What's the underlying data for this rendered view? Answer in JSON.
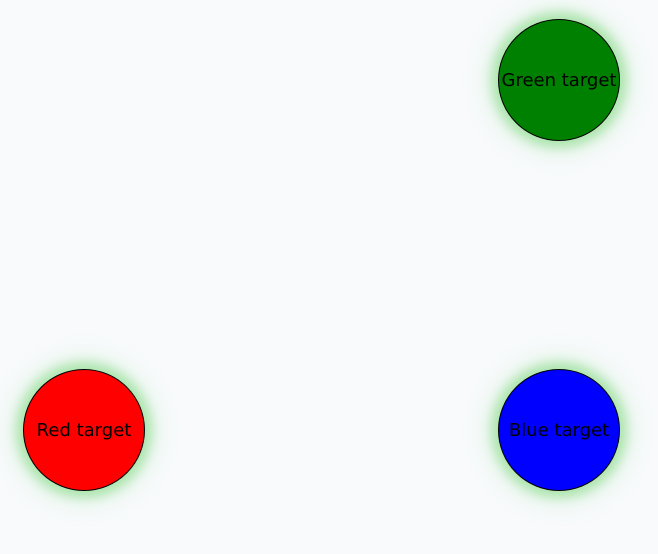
{
  "targets": {
    "green": {
      "label": "Green target",
      "color": "#008000"
    },
    "red": {
      "label": "Red target",
      "color": "#ff0000"
    },
    "blue": {
      "label": "Blue target",
      "color": "#0000ff"
    }
  },
  "colors": {
    "background": "#f8fafc",
    "glow": "#6ad06a",
    "outline": "#000000"
  }
}
